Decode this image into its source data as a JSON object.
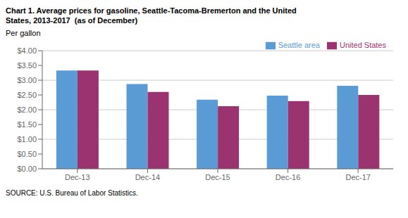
{
  "chart_data": {
    "type": "bar",
    "title": "Chart 1. Average prices for gasoline, Seattle-Tacoma-Bremerton and the United",
    "subtitle": "States, 2013-2017  (as of December)",
    "ylabel": "Per gallon",
    "annotations": [
      "SOURCE: U.S. Bureau of Labor Statistics."
    ],
    "categories": [
      "Dec-13",
      "Dec-14",
      "Dec-15",
      "Dec-16",
      "Dec-17"
    ],
    "series": [
      {
        "name": "Seattle area",
        "color": "#5B9BD5",
        "values": [
          3.33,
          2.87,
          2.34,
          2.48,
          2.81
        ]
      },
      {
        "name": "United States",
        "color": "#9B3370",
        "values": [
          3.33,
          2.6,
          2.12,
          2.29,
          2.5
        ]
      }
    ],
    "ylim": [
      0,
      4.0
    ],
    "yticks": [
      {
        "value": 0.0,
        "label": "$0.00"
      },
      {
        "value": 0.5,
        "label": "$0.50"
      },
      {
        "value": 1.0,
        "label": "$1.00"
      },
      {
        "value": 1.5,
        "label": "$1.50"
      },
      {
        "value": 2.0,
        "label": "$2.00"
      },
      {
        "value": 2.5,
        "label": "$2.50"
      },
      {
        "value": 3.0,
        "label": "$3.00"
      },
      {
        "value": 3.5,
        "label": "$3.50"
      },
      {
        "value": 4.0,
        "label": "$4.00"
      }
    ],
    "grid": true,
    "legend": "upper right"
  }
}
